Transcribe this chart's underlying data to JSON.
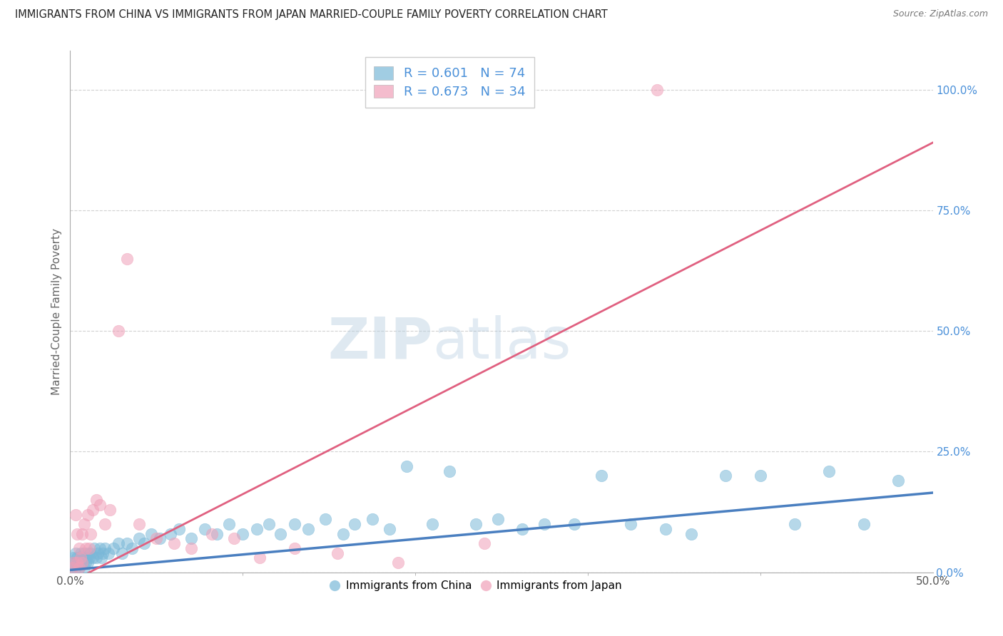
{
  "title": "IMMIGRANTS FROM CHINA VS IMMIGRANTS FROM JAPAN MARRIED-COUPLE FAMILY POVERTY CORRELATION CHART",
  "source": "Source: ZipAtlas.com",
  "ylabel": "Married-Couple Family Poverty",
  "xlim": [
    0.0,
    0.5
  ],
  "ylim": [
    0.0,
    1.08
  ],
  "xtick_positions": [
    0.0,
    0.5
  ],
  "xtick_labels": [
    "0.0%",
    "50.0%"
  ],
  "xtick_minor": [
    0.1,
    0.2,
    0.3,
    0.4
  ],
  "yticks_right": [
    0.0,
    0.25,
    0.5,
    0.75,
    1.0
  ],
  "ytick_labels_right": [
    "0.0%",
    "25.0%",
    "50.0%",
    "75.0%",
    "100.0%"
  ],
  "china_color": "#7ab8d8",
  "japan_color": "#f0a0b8",
  "china_line_color": "#4a7fc0",
  "japan_line_color": "#e06080",
  "china_line_slope": 0.32,
  "china_line_intercept": 0.005,
  "japan_line_slope": 1.82,
  "japan_line_intercept": -0.02,
  "R_china": 0.601,
  "N_china": 74,
  "R_japan": 0.673,
  "N_japan": 34,
  "legend_label_china": "Immigrants from China",
  "legend_label_japan": "Immigrants from Japan",
  "watermark_zip": "ZIP",
  "watermark_atlas": "atlas",
  "background_color": "#ffffff",
  "grid_color": "#cccccc",
  "title_color": "#222222",
  "axis_label_color": "#666666",
  "right_axis_color": "#4a90d9",
  "legend_text_color": "#4a90d9",
  "china_x": [
    0.001,
    0.002,
    0.002,
    0.003,
    0.003,
    0.004,
    0.004,
    0.005,
    0.005,
    0.006,
    0.006,
    0.007,
    0.007,
    0.008,
    0.008,
    0.009,
    0.009,
    0.01,
    0.01,
    0.011,
    0.012,
    0.013,
    0.014,
    0.015,
    0.016,
    0.017,
    0.018,
    0.019,
    0.02,
    0.022,
    0.025,
    0.028,
    0.03,
    0.033,
    0.036,
    0.04,
    0.043,
    0.047,
    0.052,
    0.058,
    0.063,
    0.07,
    0.078,
    0.085,
    0.092,
    0.1,
    0.108,
    0.115,
    0.122,
    0.13,
    0.138,
    0.148,
    0.158,
    0.165,
    0.175,
    0.185,
    0.195,
    0.21,
    0.22,
    0.235,
    0.248,
    0.262,
    0.275,
    0.292,
    0.308,
    0.325,
    0.345,
    0.36,
    0.38,
    0.4,
    0.42,
    0.44,
    0.46,
    0.48
  ],
  "china_y": [
    0.01,
    0.02,
    0.03,
    0.01,
    0.04,
    0.02,
    0.03,
    0.01,
    0.02,
    0.03,
    0.04,
    0.02,
    0.03,
    0.01,
    0.04,
    0.02,
    0.03,
    0.04,
    0.02,
    0.03,
    0.04,
    0.03,
    0.05,
    0.03,
    0.04,
    0.05,
    0.03,
    0.04,
    0.05,
    0.04,
    0.05,
    0.06,
    0.04,
    0.06,
    0.05,
    0.07,
    0.06,
    0.08,
    0.07,
    0.08,
    0.09,
    0.07,
    0.09,
    0.08,
    0.1,
    0.08,
    0.09,
    0.1,
    0.08,
    0.1,
    0.09,
    0.11,
    0.08,
    0.1,
    0.11,
    0.09,
    0.22,
    0.1,
    0.21,
    0.1,
    0.11,
    0.09,
    0.1,
    0.1,
    0.2,
    0.1,
    0.09,
    0.08,
    0.2,
    0.2,
    0.1,
    0.21,
    0.1,
    0.19
  ],
  "japan_x": [
    0.001,
    0.002,
    0.003,
    0.004,
    0.004,
    0.005,
    0.005,
    0.006,
    0.007,
    0.007,
    0.008,
    0.009,
    0.01,
    0.011,
    0.012,
    0.013,
    0.015,
    0.017,
    0.02,
    0.023,
    0.028,
    0.033,
    0.04,
    0.05,
    0.06,
    0.07,
    0.082,
    0.095,
    0.11,
    0.13,
    0.155,
    0.19,
    0.24,
    0.34
  ],
  "japan_y": [
    0.01,
    0.02,
    0.12,
    0.02,
    0.08,
    0.01,
    0.05,
    0.03,
    0.02,
    0.08,
    0.1,
    0.05,
    0.12,
    0.05,
    0.08,
    0.13,
    0.15,
    0.14,
    0.1,
    0.13,
    0.5,
    0.65,
    0.1,
    0.07,
    0.06,
    0.05,
    0.08,
    0.07,
    0.03,
    0.05,
    0.04,
    0.02,
    0.06,
    1.0
  ]
}
